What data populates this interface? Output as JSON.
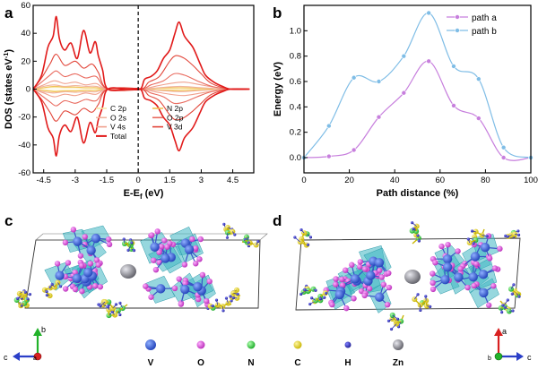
{
  "panels": {
    "a": "a",
    "b": "b",
    "c": "c",
    "d": "d"
  },
  "chart_data": [
    {
      "id": "a",
      "type": "line",
      "xlabel": "E-E",
      "xlabel_sub": "f",
      "xlabel_unit": "(eV)",
      "ylabel": "DOS (states eV",
      "ylabel_sup": "-1",
      "ylabel_end": ")",
      "xlim": [
        -5.0,
        5.5
      ],
      "ylim": [
        -60,
        60
      ],
      "xticks": [
        "-4.5",
        "-3",
        "-1.5",
        "0",
        "1.5",
        "3",
        "4.5"
      ],
      "xtick_values": [
        -4.5,
        -3,
        -1.5,
        0,
        1.5,
        3,
        4.5
      ],
      "yticks": [
        "60",
        "40",
        "20",
        "0",
        "-20",
        "-40",
        "-60"
      ],
      "ytick_values": [
        60,
        40,
        20,
        0,
        -20,
        -40,
        -60
      ],
      "fermi_level": 0,
      "legend": [
        {
          "label": "C 2p",
          "color": "#f5e7a8"
        },
        {
          "label": "N 2p",
          "color": "#f2c255"
        },
        {
          "label": "O 2s",
          "color": "#f0b49e"
        },
        {
          "label": "O 2p",
          "color": "#e96a5e"
        },
        {
          "label": "V 4s",
          "color": "#f0a18e"
        },
        {
          "label": "V 3d",
          "color": "#e2463a"
        },
        {
          "label": "Total",
          "color": "#e11a1a"
        }
      ],
      "series": [
        {
          "name": "Total",
          "color": "#e11a1a",
          "x": [
            -5.0,
            -4.6,
            -4.3,
            -4.05,
            -3.9,
            -3.75,
            -3.5,
            -3.2,
            -2.9,
            -2.6,
            -2.3,
            -2.05,
            -1.9,
            -1.7,
            -1.45,
            -0.5,
            0.1,
            0.3,
            0.6,
            0.9,
            1.2,
            1.5,
            1.75,
            1.95,
            2.2,
            2.6,
            2.95,
            3.2,
            3.6,
            4.0,
            4.4,
            5.3
          ],
          "y": [
            0,
            10,
            30,
            38,
            52,
            36,
            28,
            33,
            22,
            42,
            26,
            34,
            24,
            14,
            0,
            0,
            0,
            7,
            9,
            13,
            22,
            28,
            40,
            48,
            38,
            30,
            18,
            10,
            5,
            2,
            0,
            0
          ]
        },
        {
          "name": "V 3d",
          "color": "#e2463a",
          "x": [
            -5.0,
            -4.6,
            -4.2,
            -3.9,
            -3.5,
            -3.0,
            -2.6,
            -2.2,
            -1.9,
            -1.45,
            0.1,
            0.5,
            1.0,
            1.5,
            1.8,
            2.2,
            2.6,
            3.0,
            3.5,
            4.4,
            5.3
          ],
          "y": [
            0,
            8,
            18,
            25,
            17,
            20,
            15,
            18,
            12,
            0,
            0,
            5,
            9,
            20,
            24,
            22,
            17,
            11,
            4,
            0,
            0
          ]
        },
        {
          "name": "O 2p",
          "color": "#e96a5e",
          "x": [
            -5.0,
            -4.6,
            -4.2,
            -3.9,
            -3.5,
            -3.0,
            -2.5,
            -2.0,
            -1.45,
            0.1,
            0.6,
            1.2,
            1.7,
            2.2,
            2.8,
            3.5,
            4.4,
            5.3
          ],
          "y": [
            0,
            5,
            10,
            13,
            9,
            11,
            8,
            9,
            0,
            0,
            3,
            6,
            11,
            10,
            6,
            2,
            0,
            0
          ]
        },
        {
          "name": "V 4s",
          "color": "#f0a18e",
          "x": [
            -5.0,
            -4.5,
            -4.0,
            -3.5,
            -3.0,
            -2.5,
            -2.0,
            -1.45,
            0.1,
            0.8,
            1.5,
            2.2,
            3.0,
            3.8,
            4.4,
            5.3
          ],
          "y": [
            0,
            3,
            6,
            4,
            5,
            3,
            4,
            0,
            0,
            2,
            4,
            5,
            3,
            1,
            0,
            0
          ]
        },
        {
          "name": "O 2s",
          "color": "#f0b49e",
          "x": [
            -5.0,
            -4.5,
            -4.0,
            -3.5,
            -3.0,
            -2.5,
            -2.0,
            -1.45,
            0.1,
            1.0,
            2.0,
            3.0,
            4.4,
            5.3
          ],
          "y": [
            0,
            2,
            3,
            2,
            2.5,
            2,
            2,
            0,
            0,
            1,
            2,
            1,
            0,
            0
          ]
        },
        {
          "name": "N 2p",
          "color": "#f2c255",
          "x": [
            -5.0,
            -4.5,
            -4.0,
            -3.5,
            -3.0,
            -2.5,
            -2.0,
            -1.45,
            0.1,
            1.0,
            2.0,
            3.0,
            4.4,
            5.3
          ],
          "y": [
            0,
            1,
            2,
            1.5,
            1.5,
            1,
            1,
            0,
            0,
            0.8,
            1,
            0.6,
            0,
            0
          ]
        },
        {
          "name": "C 2p",
          "color": "#f5e7a8",
          "x": [
            -5.0,
            -4.5,
            -4.0,
            -3.5,
            -3.0,
            -2.5,
            -2.0,
            -1.45,
            0.1,
            1.0,
            2.0,
            3.0,
            4.4,
            5.3
          ],
          "y": [
            0,
            0.8,
            1.2,
            1,
            1,
            0.8,
            0.6,
            0,
            0,
            0.5,
            0.7,
            0.4,
            0,
            0
          ]
        }
      ]
    },
    {
      "id": "b",
      "type": "line",
      "xlabel": "Path distance (%)",
      "ylabel": "Energy (eV)",
      "xlim": [
        0,
        100
      ],
      "ylim": [
        -0.12,
        1.2
      ],
      "xticks": [
        "0",
        "20",
        "40",
        "60",
        "80",
        "100"
      ],
      "xtick_values": [
        0,
        20,
        40,
        60,
        80,
        100
      ],
      "yticks": [
        "0.0",
        "0.2",
        "0.4",
        "0.6",
        "0.8",
        "1.0"
      ],
      "ytick_values": [
        0.0,
        0.2,
        0.4,
        0.6,
        0.8,
        1.0
      ],
      "legend_position": "top-right",
      "series": [
        {
          "name": "path a",
          "color": "#c77fdd",
          "x": [
            0,
            11,
            22,
            33,
            44,
            55,
            66,
            77,
            88,
            100
          ],
          "y": [
            0.0,
            0.01,
            0.06,
            0.32,
            0.51,
            0.76,
            0.41,
            0.31,
            0.0,
            0.0
          ]
        },
        {
          "name": "path b",
          "color": "#7fbde6",
          "x": [
            0,
            11,
            22,
            33,
            44,
            55,
            66,
            77,
            88,
            100
          ],
          "y": [
            0.0,
            0.25,
            0.63,
            0.6,
            0.8,
            1.14,
            0.72,
            0.62,
            0.08,
            0.0
          ]
        }
      ]
    }
  ],
  "structure_legend": [
    {
      "label": "V",
      "color": "#2a4fcf"
    },
    {
      "label": "O",
      "color": "#d845d8"
    },
    {
      "label": "N",
      "color": "#2fcc3a"
    },
    {
      "label": "C",
      "color": "#e5d32a"
    },
    {
      "label": "H",
      "color": "#2d2fb8"
    },
    {
      "label": "Zn",
      "color": "#8c8c96"
    }
  ],
  "axes_c": {
    "x": "c",
    "y": "b",
    "z": "a"
  },
  "axes_d": {
    "x": "c",
    "y": "a",
    "z": "b"
  }
}
